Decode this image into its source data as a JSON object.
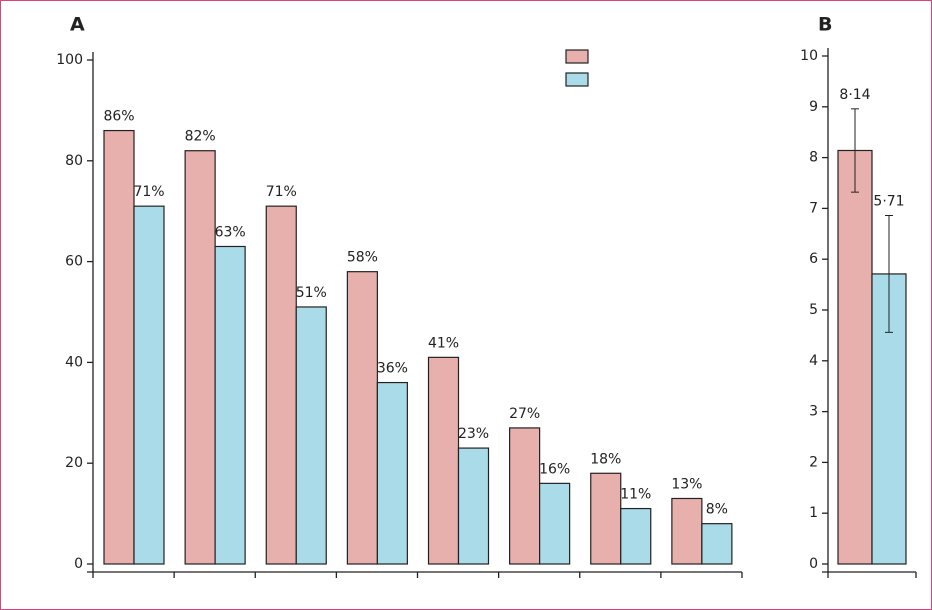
{
  "chart_data": [
    {
      "type": "bar",
      "title": "A",
      "categories": [
        null,
        null,
        null,
        null,
        null,
        null,
        null,
        null
      ],
      "series": [
        {
          "color": "#e8b0ad",
          "values": [
            86,
            82,
            71,
            58,
            41,
            27,
            18,
            13
          ],
          "value_labels": [
            "86%",
            "82%",
            "71%",
            "58%",
            "41%",
            "27%",
            "18%",
            "13%"
          ]
        },
        {
          "color": "#aadbe8",
          "values": [
            71,
            63,
            51,
            36,
            23,
            16,
            11,
            8
          ],
          "value_labels": [
            "71%",
            "63%",
            "51%",
            "36%",
            "23%",
            "16%",
            "11%",
            "8%"
          ]
        }
      ],
      "ylim": [
        0,
        100
      ],
      "yticks": [
        0,
        20,
        40,
        60,
        80,
        100
      ],
      "legend": "top-center"
    },
    {
      "type": "bar",
      "title": "B",
      "categories": [
        null
      ],
      "series": [
        {
          "color": "#e8b0ad",
          "values": [
            8.14
          ],
          "value_labels": [
            "8·14"
          ],
          "errors": [
            0.82
          ]
        },
        {
          "color": "#aadbe8",
          "values": [
            5.71
          ],
          "value_labels": [
            "5·71"
          ],
          "errors": [
            1.15
          ]
        }
      ],
      "ylim": [
        0,
        10
      ],
      "yticks": [
        0,
        1,
        2,
        3,
        4,
        5,
        6,
        7,
        8,
        9,
        10
      ]
    }
  ]
}
